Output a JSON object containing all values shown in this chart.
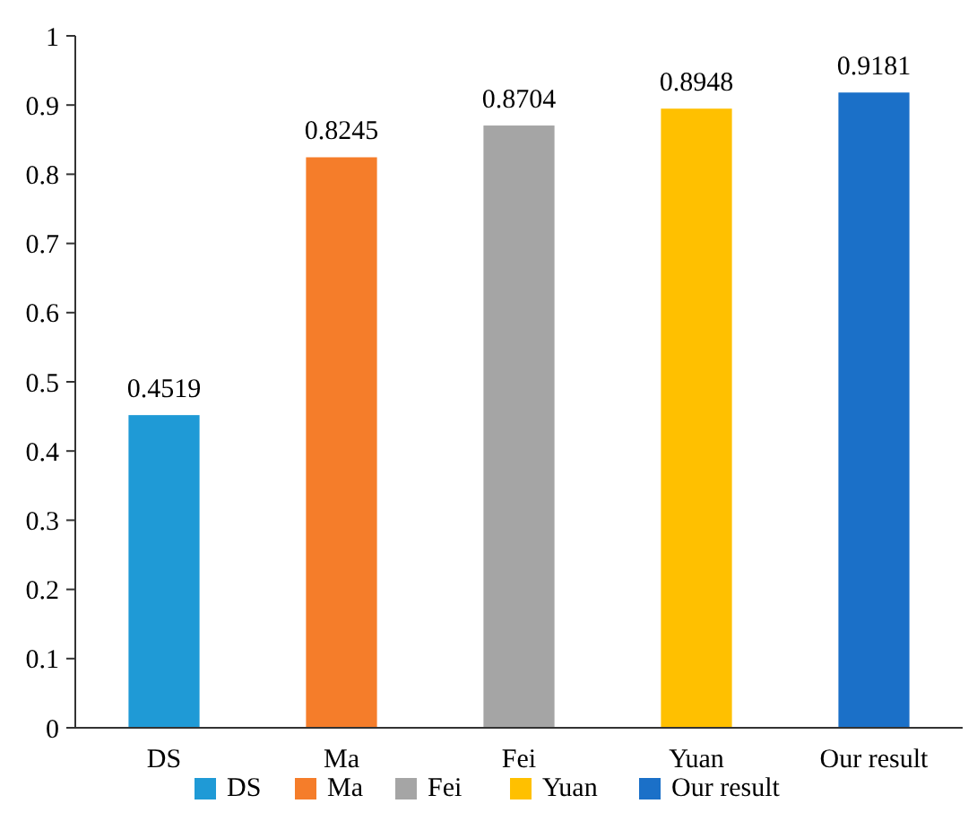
{
  "chart_data": {
    "type": "bar",
    "categories": [
      "DS",
      "Ma",
      "Fei",
      "Yuan",
      "Our result"
    ],
    "stacked": true,
    "series": [
      {
        "name": "DS",
        "color": "#1f9ad6",
        "values": [
          0.4519,
          null,
          null,
          null,
          null
        ]
      },
      {
        "name": "Ma",
        "color": "#f57d2a",
        "values": [
          null,
          0.8245,
          null,
          null,
          null
        ]
      },
      {
        "name": "Fei",
        "color": "#a5a5a5",
        "values": [
          null,
          null,
          0.8704,
          null,
          null
        ]
      },
      {
        "name": "Yuan",
        "color": "#ffc000",
        "values": [
          null,
          null,
          null,
          0.8948,
          null
        ]
      },
      {
        "name": "Our result",
        "color": "#1b70c8",
        "values": [
          null,
          null,
          null,
          null,
          0.9181
        ]
      }
    ],
    "ylim": [
      0,
      1
    ],
    "yticks": [
      0,
      0.1,
      0.2,
      0.3,
      0.4,
      0.5,
      0.6,
      0.7,
      0.8,
      0.9,
      1
    ],
    "data_labels": true,
    "legend": "bottom",
    "grid": false
  }
}
